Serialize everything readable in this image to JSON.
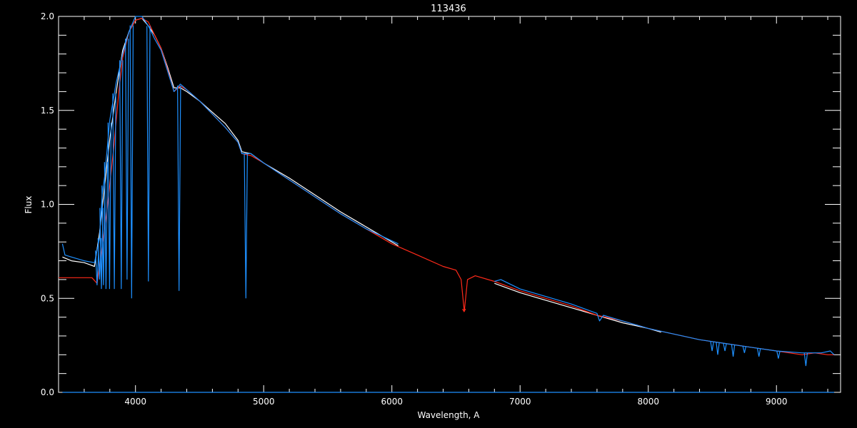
{
  "chart_data": {
    "type": "line",
    "title": "113436",
    "xlabel": "Wavelength, A",
    "ylabel": "Flux",
    "xlim": [
      3400,
      9500
    ],
    "ylim": [
      0,
      2.0
    ],
    "x_ticks": [
      4000,
      5000,
      6000,
      7000,
      8000,
      9000
    ],
    "y_ticks": [
      0.0,
      0.5,
      1.0,
      1.5,
      2.0
    ],
    "y_tick_labels": [
      "0.0",
      "0.5",
      "1.0",
      "1.5",
      "2.0"
    ],
    "grid": false,
    "background": "#000000",
    "axis_color": "#ffffff",
    "series": [
      {
        "color": "#ffffff",
        "segments": [
          [
            [
              3430,
              0.72
            ],
            [
              3500,
              0.7
            ],
            [
              3600,
              0.69
            ],
            [
              3680,
              0.67
            ],
            [
              3720,
              0.85
            ],
            [
              3760,
              1.1
            ],
            [
              3800,
              1.35
            ],
            [
              3850,
              1.6
            ],
            [
              3900,
              1.82
            ],
            [
              3950,
              1.92
            ],
            [
              4000,
              1.98
            ],
            [
              4050,
              1.99
            ],
            [
              4100,
              1.95
            ],
            [
              4150,
              1.9
            ],
            [
              4200,
              1.83
            ],
            [
              4250,
              1.73
            ],
            [
              4300,
              1.62
            ],
            [
              4350,
              1.62
            ],
            [
              4400,
              1.6
            ],
            [
              4500,
              1.55
            ],
            [
              4600,
              1.49
            ],
            [
              4700,
              1.43
            ],
            [
              4800,
              1.34
            ],
            [
              4830,
              1.28
            ],
            [
              4900,
              1.27
            ],
            [
              5000,
              1.22
            ],
            [
              5200,
              1.14
            ],
            [
              5400,
              1.05
            ],
            [
              5600,
              0.96
            ],
            [
              5800,
              0.88
            ],
            [
              6050,
              0.78
            ]
          ],
          [
            [
              6800,
              0.58
            ],
            [
              7000,
              0.53
            ],
            [
              7200,
              0.49
            ],
            [
              7400,
              0.45
            ],
            [
              7600,
              0.41
            ],
            [
              7800,
              0.37
            ],
            [
              8000,
              0.34
            ],
            [
              8100,
              0.32
            ]
          ]
        ]
      },
      {
        "color": "#ff2a1a",
        "segments": [
          [
            [
              3400,
              0.61
            ],
            [
              3500,
              0.61
            ],
            [
              3600,
              0.61
            ],
            [
              3660,
              0.61
            ],
            [
              3700,
              0.58
            ],
            [
              3730,
              0.72
            ],
            [
              3780,
              0.98
            ],
            [
              3830,
              1.3
            ],
            [
              3870,
              1.6
            ],
            [
              3900,
              1.78
            ],
            [
              3950,
              1.92
            ],
            [
              4000,
              1.98
            ],
            [
              4050,
              1.99
            ],
            [
              4100,
              1.97
            ],
            [
              4150,
              1.9
            ],
            [
              4200,
              1.83
            ],
            [
              4250,
              1.72
            ],
            [
              4300,
              1.6
            ],
            [
              4350,
              1.63
            ],
            [
              4400,
              1.61
            ],
            [
              4500,
              1.55
            ],
            [
              4600,
              1.48
            ],
            [
              4700,
              1.41
            ],
            [
              4800,
              1.33
            ],
            [
              4830,
              1.27
            ],
            [
              4900,
              1.26
            ],
            [
              5000,
              1.22
            ],
            [
              5200,
              1.13
            ],
            [
              5400,
              1.04
            ],
            [
              5600,
              0.95
            ],
            [
              5800,
              0.87
            ],
            [
              6000,
              0.79
            ],
            [
              6200,
              0.73
            ],
            [
              6400,
              0.67
            ],
            [
              6500,
              0.65
            ],
            [
              6540,
              0.6
            ],
            [
              6565,
              0.43
            ],
            [
              6590,
              0.6
            ],
            [
              6650,
              0.62
            ],
            [
              6800,
              0.59
            ],
            [
              7000,
              0.54
            ],
            [
              7200,
              0.5
            ],
            [
              7400,
              0.46
            ],
            [
              7600,
              0.41
            ],
            [
              7800,
              0.38
            ],
            [
              8000,
              0.34
            ],
            [
              8200,
              0.31
            ],
            [
              8400,
              0.28
            ],
            [
              8500,
              0.27
            ],
            [
              8600,
              0.26
            ],
            [
              8700,
              0.25
            ],
            [
              8800,
              0.24
            ],
            [
              9000,
              0.22
            ],
            [
              9200,
              0.2
            ],
            [
              9300,
              0.21
            ],
            [
              9400,
              0.2
            ],
            [
              9450,
              0.2
            ]
          ]
        ]
      },
      {
        "color": "#1e90ff",
        "segments": [
          [
            [
              3430,
              0.79
            ],
            [
              3450,
              0.73
            ],
            [
              3500,
              0.72
            ],
            [
              3600,
              0.7
            ],
            [
              3680,
              0.69
            ],
            [
              3720,
              0.82
            ],
            [
              3740,
              1.05
            ],
            [
              3760,
              1.15
            ],
            [
              3800,
              1.45
            ],
            [
              3850,
              1.65
            ],
            [
              3900,
              1.8
            ],
            [
              3950,
              1.92
            ],
            [
              4000,
              2.0
            ],
            [
              4050,
              2.0
            ],
            [
              4100,
              1.95
            ],
            [
              4150,
              1.88
            ],
            [
              4200,
              1.82
            ],
            [
              4250,
              1.71
            ],
            [
              4300,
              1.6
            ],
            [
              4350,
              1.64
            ],
            [
              4400,
              1.61
            ],
            [
              4500,
              1.55
            ],
            [
              4600,
              1.48
            ],
            [
              4700,
              1.41
            ],
            [
              4800,
              1.33
            ],
            [
              4830,
              1.27
            ],
            [
              4900,
              1.27
            ],
            [
              5000,
              1.22
            ],
            [
              5200,
              1.13
            ],
            [
              5400,
              1.04
            ],
            [
              5600,
              0.95
            ],
            [
              5800,
              0.87
            ],
            [
              6050,
              0.79
            ]
          ],
          [
            [
              6800,
              0.59
            ],
            [
              6850,
              0.6
            ],
            [
              7000,
              0.55
            ],
            [
              7200,
              0.51
            ],
            [
              7400,
              0.47
            ],
            [
              7600,
              0.42
            ],
            [
              7620,
              0.38
            ],
            [
              7650,
              0.41
            ],
            [
              7800,
              0.38
            ],
            [
              8000,
              0.34
            ],
            [
              8200,
              0.31
            ],
            [
              8400,
              0.28
            ],
            [
              8600,
              0.26
            ],
            [
              8800,
              0.24
            ],
            [
              9000,
              0.22
            ],
            [
              9200,
              0.21
            ],
            [
              9350,
              0.21
            ],
            [
              9420,
              0.22
            ],
            [
              9450,
              0.2
            ]
          ]
        ]
      },
      {
        "color": "#1e90ff",
        "segments": [
          [
            [
              3430,
              0.0
            ],
            [
              9450,
              0.0
            ]
          ]
        ]
      }
    ],
    "absorption_lines": [
      {
        "x": 3700,
        "depth_to": 0.57
      },
      {
        "x": 3720,
        "depth_to": 0.6
      },
      {
        "x": 3734,
        "depth_to": 0.55
      },
      {
        "x": 3750,
        "depth_to": 0.57
      },
      {
        "x": 3770,
        "depth_to": 0.55
      },
      {
        "x": 3798,
        "depth_to": 0.55
      },
      {
        "x": 3835,
        "depth_to": 0.55
      },
      {
        "x": 3889,
        "depth_to": 0.55
      },
      {
        "x": 3934,
        "depth_to": 0.6
      },
      {
        "x": 3970,
        "depth_to": 0.5
      },
      {
        "x": 4101,
        "depth_to": 0.59
      },
      {
        "x": 4340,
        "depth_to": 0.54
      },
      {
        "x": 4861,
        "depth_to": 0.5
      },
      {
        "x": 6563,
        "depth_to": 0.43
      },
      {
        "x": 8498,
        "depth_to": 0.22
      },
      {
        "x": 8542,
        "depth_to": 0.2
      },
      {
        "x": 8598,
        "depth_to": 0.22
      },
      {
        "x": 8662,
        "depth_to": 0.19
      },
      {
        "x": 8750,
        "depth_to": 0.21
      },
      {
        "x": 8863,
        "depth_to": 0.19
      },
      {
        "x": 9015,
        "depth_to": 0.18
      },
      {
        "x": 9229,
        "depth_to": 0.14
      }
    ]
  }
}
